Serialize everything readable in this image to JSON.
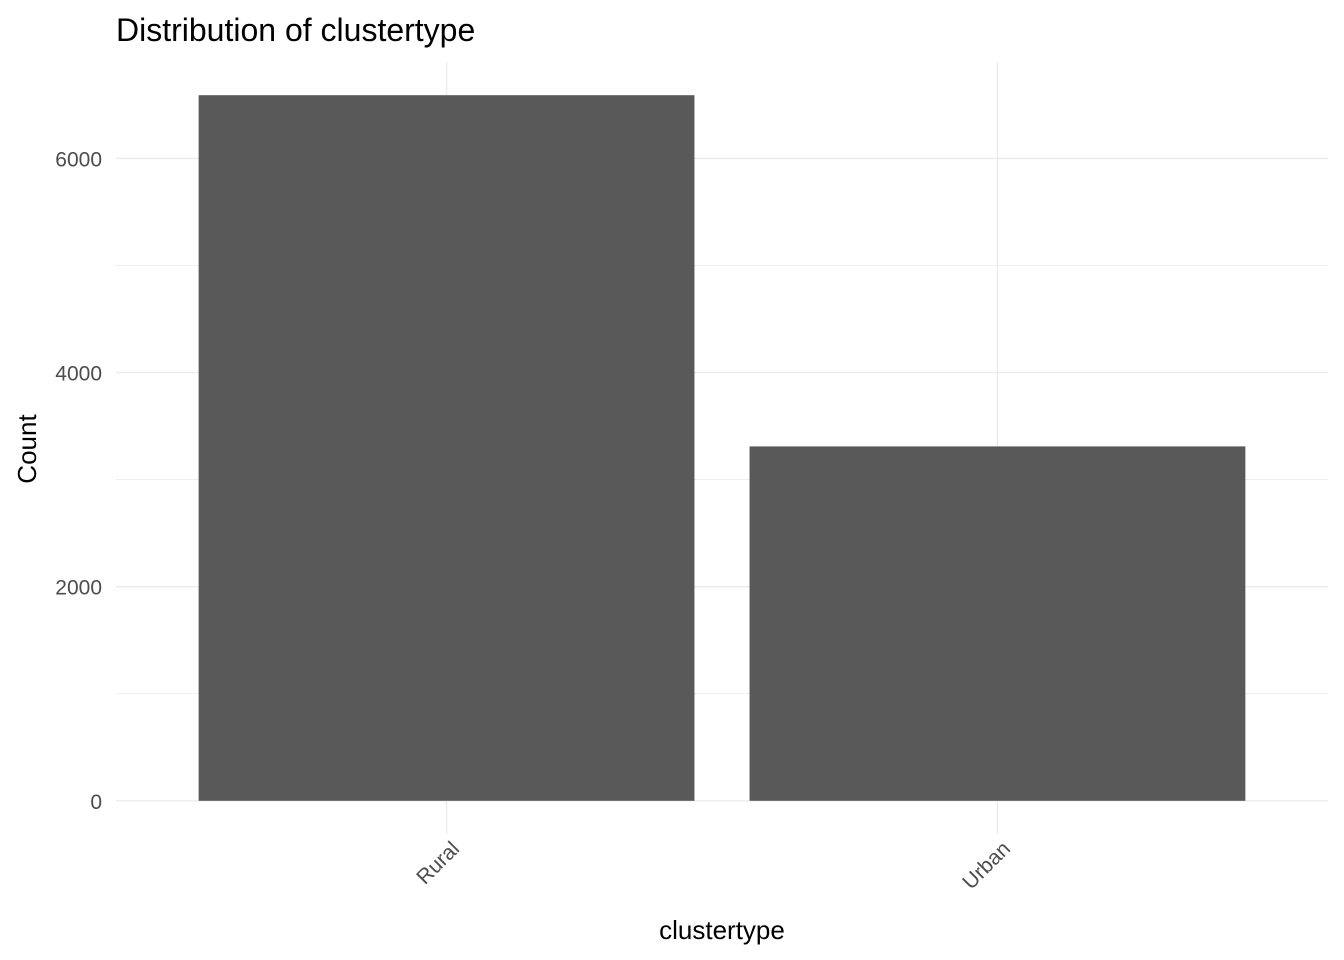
{
  "chart_data": {
    "type": "bar",
    "title": "Distribution of clustertype",
    "xlabel": "clustertype",
    "ylabel": "Count",
    "categories": [
      "Rural",
      "Urban"
    ],
    "values": [
      6590,
      3310
    ],
    "ylim": [
      -310,
      6900
    ],
    "y_ticks": [
      0,
      2000,
      4000,
      6000
    ],
    "y_minor_ticks": [
      1000,
      3000,
      5000
    ],
    "y_tick_labels": [
      "0",
      "2000",
      "4000",
      "6000"
    ],
    "x_tick_rotation": "45deg",
    "grid": true,
    "legend": "none",
    "bar_color": "#595959",
    "grid_color": "#ebebeb"
  }
}
